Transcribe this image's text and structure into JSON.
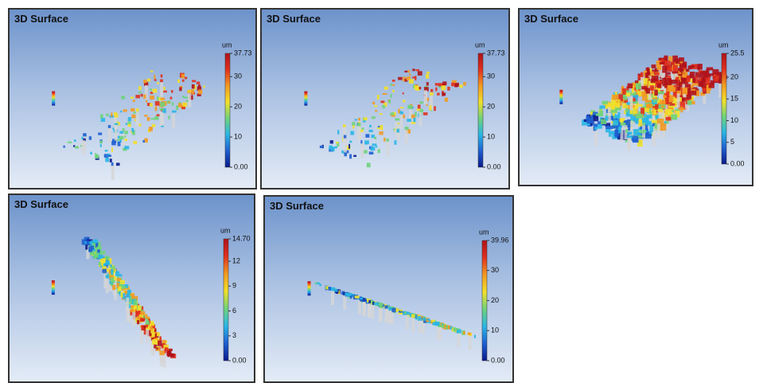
{
  "panels": [
    {
      "title": "3D Surface",
      "unit": "um",
      "colorbar": {
        "ticks": [
          37.73,
          30,
          20,
          10,
          {
            "value": 0,
            "label": "0.00"
          }
        ]
      }
    },
    {
      "title": "3D Surface",
      "unit": "um",
      "colorbar": {
        "ticks": [
          37.73,
          30,
          20,
          10,
          {
            "value": 0,
            "label": "0.00"
          }
        ]
      }
    },
    {
      "title": "3D Surface",
      "unit": "um",
      "colorbar": {
        "ticks": [
          25.5,
          20,
          15,
          10,
          5,
          {
            "value": 0,
            "label": "0.00"
          }
        ]
      }
    },
    {
      "title": "3D Surface",
      "unit": "um",
      "colorbar": {
        "ticks": [
          {
            "value": 14.7,
            "label": "14.70"
          },
          12,
          9,
          6,
          3,
          {
            "value": 0,
            "label": "0.00"
          }
        ]
      }
    },
    {
      "title": "3D Surface",
      "unit": "um",
      "colorbar": {
        "ticks": [
          39.96,
          30,
          20,
          10,
          {
            "value": 0,
            "label": "0.00"
          }
        ]
      }
    }
  ]
}
